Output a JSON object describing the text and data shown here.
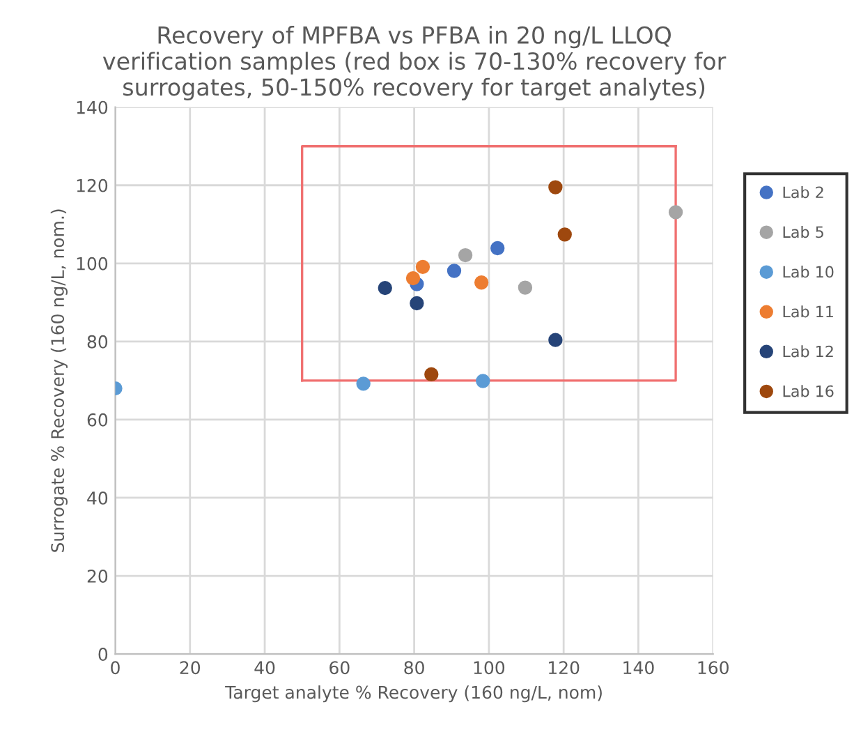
{
  "chart_data": {
    "type": "scatter",
    "title": "Recovery of MPFBA vs PFBA in 20 ng/L LLOQ\nverification samples (red box is 70-130% recovery for\nsurrogates, 50-150% recovery for target analytes)",
    "xlabel": "Target analyte % Recovery (160 ng/L, nom)",
    "ylabel": "Surrogate % Recovery (160 ng/L, nom.)",
    "xlim": [
      0,
      160
    ],
    "xticks": [
      0,
      20,
      40,
      60,
      80,
      100,
      120,
      140,
      160
    ],
    "ylim": [
      0,
      140
    ],
    "yticks": [
      0,
      20,
      40,
      60,
      80,
      100,
      120,
      140
    ],
    "grid": true,
    "legend": "right",
    "marker": "circle",
    "series": [
      {
        "type": "line",
        "color": "#f07070",
        "marker": "none",
        "line_style": "solid",
        "x": [
          50,
          150,
          150
        ],
        "values": [
          70,
          70,
          130
        ]
      },
      {
        "type": "line",
        "color": "#f07070",
        "marker": "none",
        "line_style": "solid",
        "x": [
          150,
          50,
          50
        ],
        "values": [
          130,
          130,
          70
        ]
      },
      {
        "name": "Lab 2",
        "color": "#4472c4",
        "x": [
          102.3,
          90.7,
          80.7
        ],
        "values": [
          103.9,
          98.1,
          94.7
        ]
      },
      {
        "name": "Lab 5",
        "color": "#a5a5a5",
        "x": [
          93.7,
          109.7,
          150
        ],
        "values": [
          102.1,
          93.8,
          113.1
        ]
      },
      {
        "name": "Lab 10",
        "color": "#5b9bd5",
        "x": [
          0,
          66.4,
          98.4
        ],
        "values": [
          68,
          69.2,
          69.9
        ]
      },
      {
        "name": "Lab 11",
        "color": "#ed7d31",
        "x": [
          82.3,
          79.7,
          98.0
        ],
        "values": [
          99.1,
          96.2,
          95.1
        ]
      },
      {
        "name": "Lab 12",
        "color": "#264478",
        "x": [
          72.2,
          80.7,
          117.8
        ],
        "values": [
          93.7,
          89.8,
          80.4
        ]
      },
      {
        "name": "Lab 16",
        "color": "#9e480e",
        "x": [
          117.8,
          120.3,
          84.6
        ],
        "values": [
          119.5,
          107.4,
          71.6
        ]
      }
    ]
  }
}
